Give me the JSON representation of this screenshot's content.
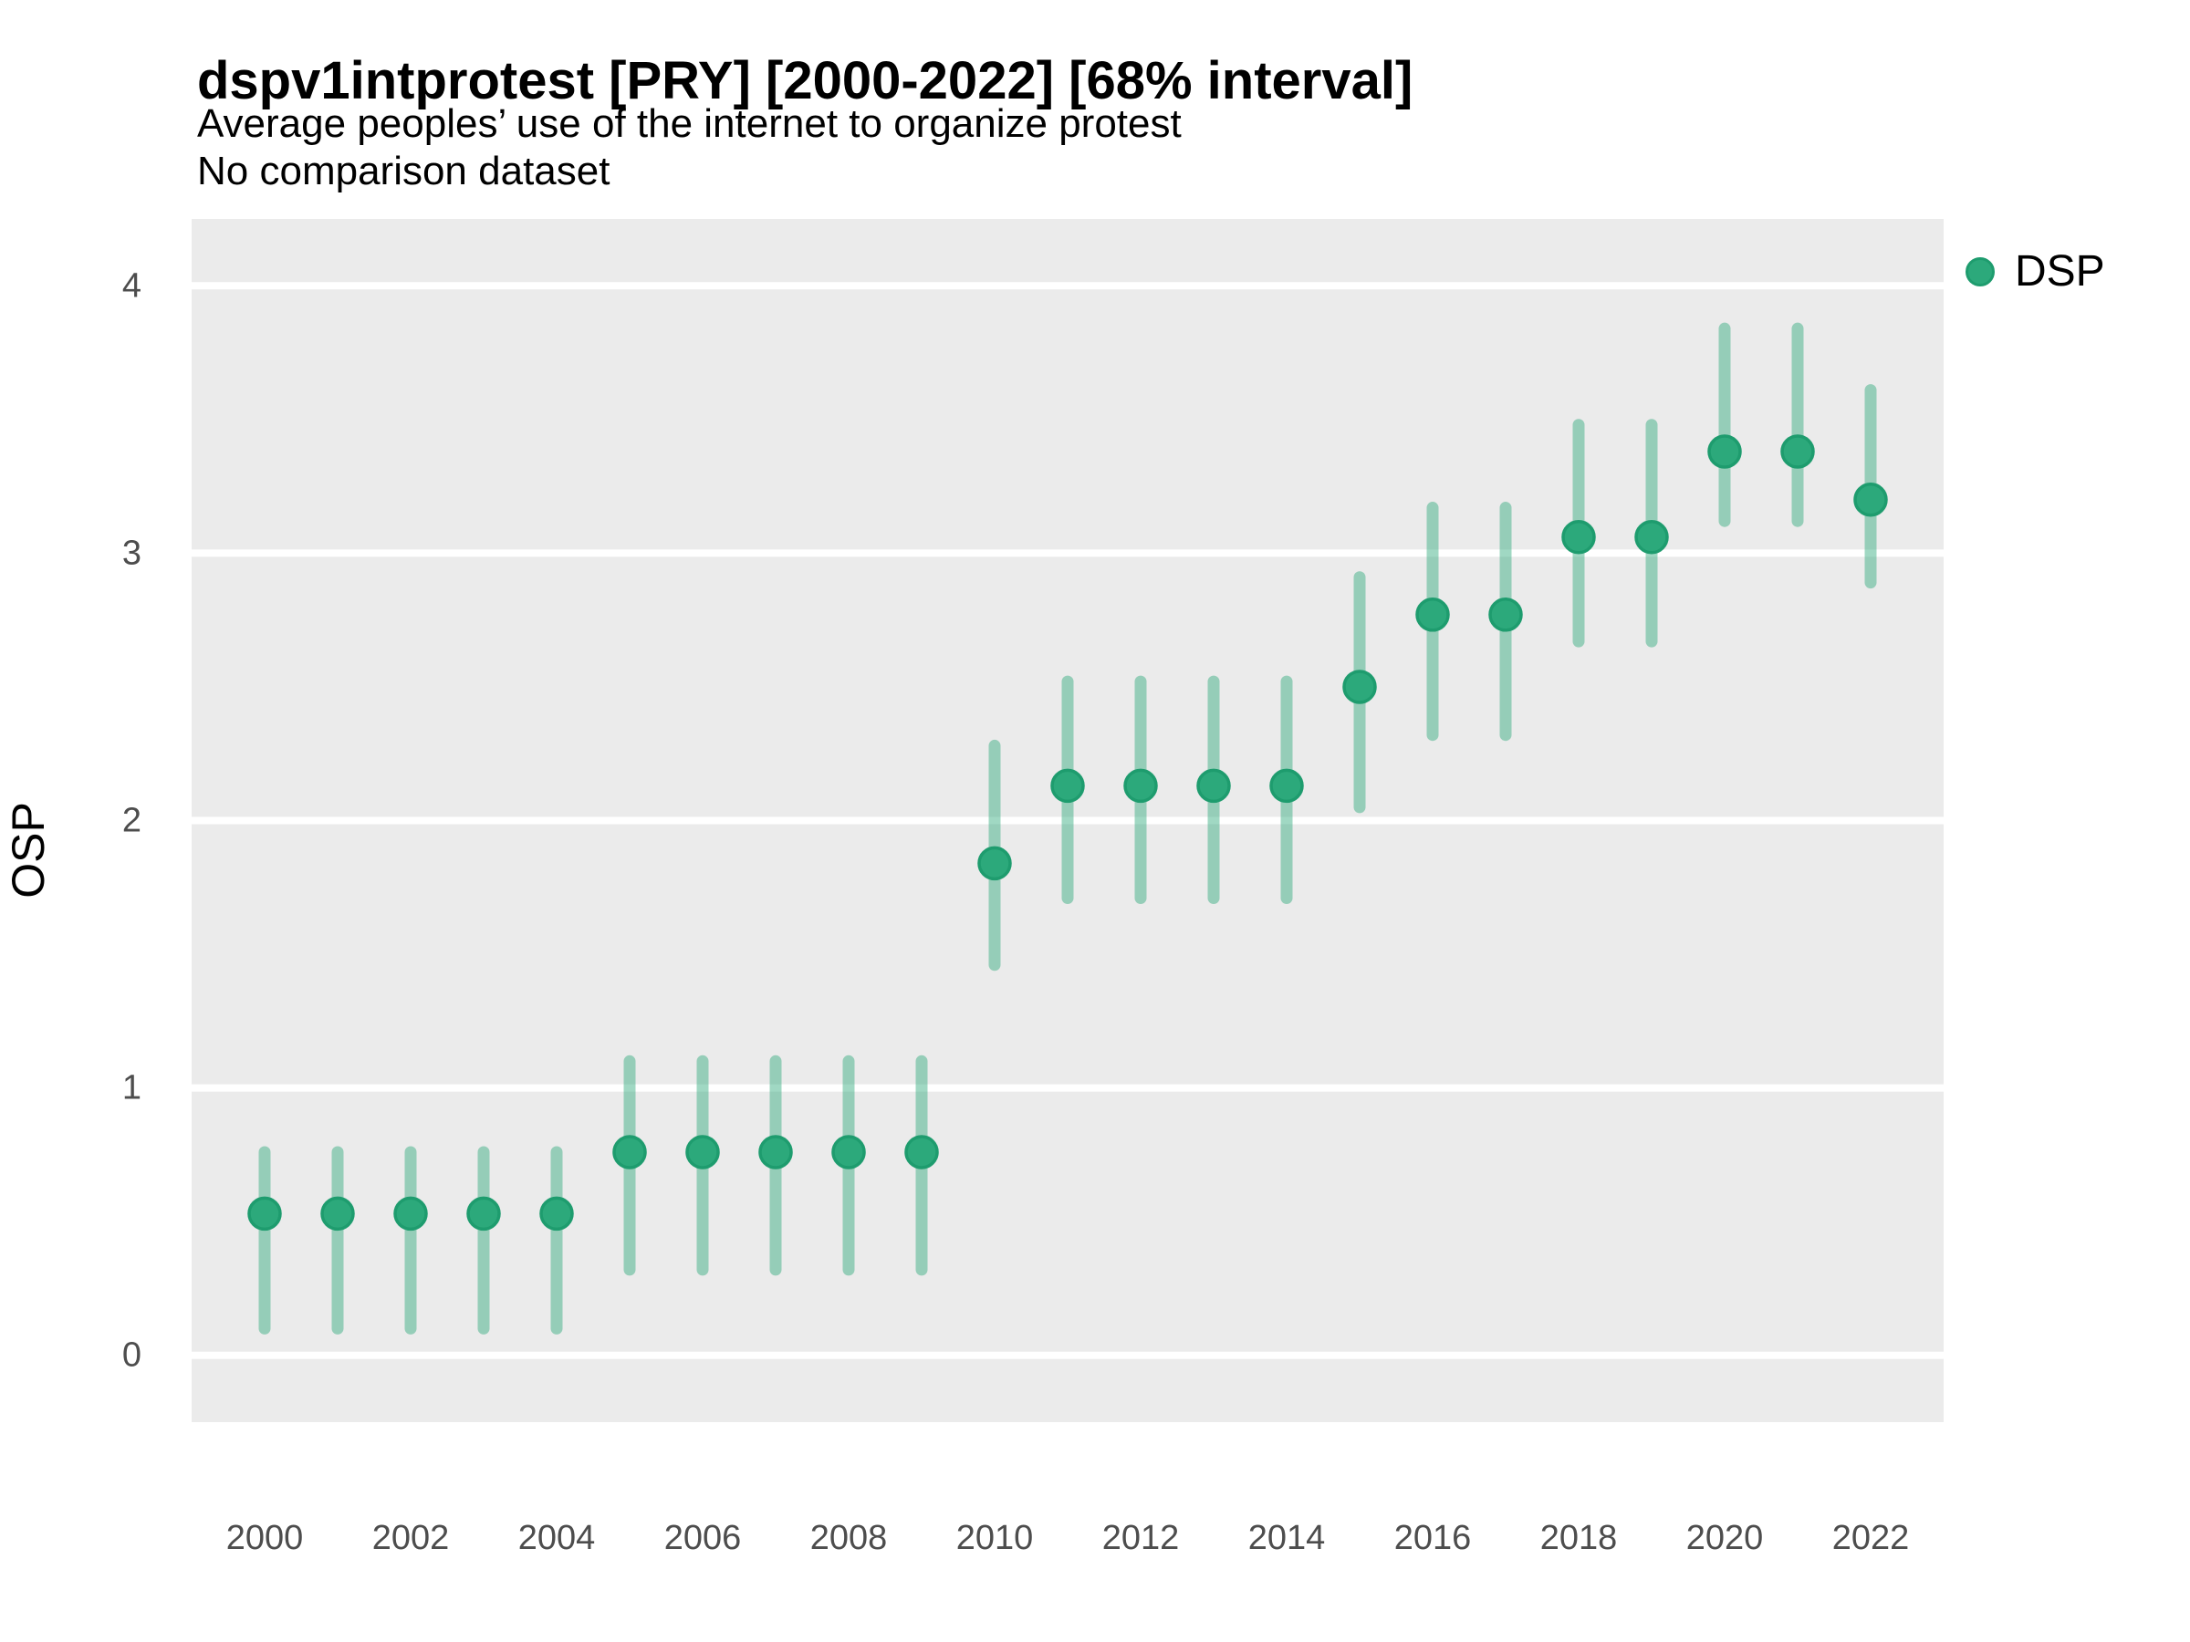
{
  "header": {
    "title": "dspv1intprotest [PRY] [2000-2022] [68% interval]",
    "subtitle": "Average peoples’ use of the internet to organize protest",
    "note": "No comparison dataset"
  },
  "legend": {
    "position": "right",
    "items": [
      {
        "label": "DSP",
        "marker": "circle-icon",
        "color": "#2ca97b"
      }
    ]
  },
  "colors": {
    "point_fill": "#2ca97b",
    "point_stroke": "#1e9c6e",
    "interval_bar": "rgba(44, 169, 123, 0.45)",
    "panel_bg": "#ebebeb",
    "gridline": "#ffffff",
    "tick_label": "#4d4d4d",
    "text": "#000000"
  },
  "chart_data": {
    "type": "scatter",
    "subtype": "pointrange",
    "title": "dspv1intprotest [PRY] [2000-2022] [68% interval]",
    "subtitle": "Average peoples’ use of the internet to organize protest",
    "note": "No comparison dataset",
    "xlabel": "",
    "ylabel": "OSP",
    "interval_level": "68%",
    "grid": "horizontal-major-only",
    "legend_position": "right",
    "x": [
      2000,
      2001,
      2002,
      2003,
      2004,
      2005,
      2006,
      2007,
      2008,
      2009,
      2010,
      2011,
      2012,
      2013,
      2014,
      2015,
      2016,
      2017,
      2018,
      2019,
      2020,
      2021,
      2022
    ],
    "x_ticks": [
      2000,
      2002,
      2004,
      2006,
      2008,
      2010,
      2012,
      2014,
      2016,
      2018,
      2020,
      2022
    ],
    "y_ticks": [
      0,
      1,
      2,
      3,
      4
    ],
    "ylim": [
      -0.25,
      4.25
    ],
    "series": [
      {
        "name": "DSP",
        "estimates": [
          0.53,
          0.53,
          0.53,
          0.53,
          0.53,
          0.76,
          0.76,
          0.76,
          0.76,
          0.76,
          1.84,
          2.13,
          2.13,
          2.13,
          2.13,
          2.5,
          2.77,
          2.77,
          3.06,
          3.06,
          3.38,
          3.38,
          3.2
        ],
        "ci_low": [
          0.1,
          0.1,
          0.1,
          0.1,
          0.1,
          0.32,
          0.32,
          0.32,
          0.32,
          0.32,
          1.46,
          1.71,
          1.71,
          1.71,
          1.71,
          2.05,
          2.32,
          2.32,
          2.67,
          2.67,
          3.12,
          3.12,
          2.89
        ],
        "ci_high": [
          0.76,
          0.76,
          0.76,
          0.76,
          0.76,
          1.1,
          1.1,
          1.1,
          1.1,
          1.1,
          2.28,
          2.52,
          2.52,
          2.52,
          2.52,
          2.91,
          3.17,
          3.17,
          3.48,
          3.48,
          3.84,
          3.84,
          3.61
        ]
      }
    ]
  }
}
